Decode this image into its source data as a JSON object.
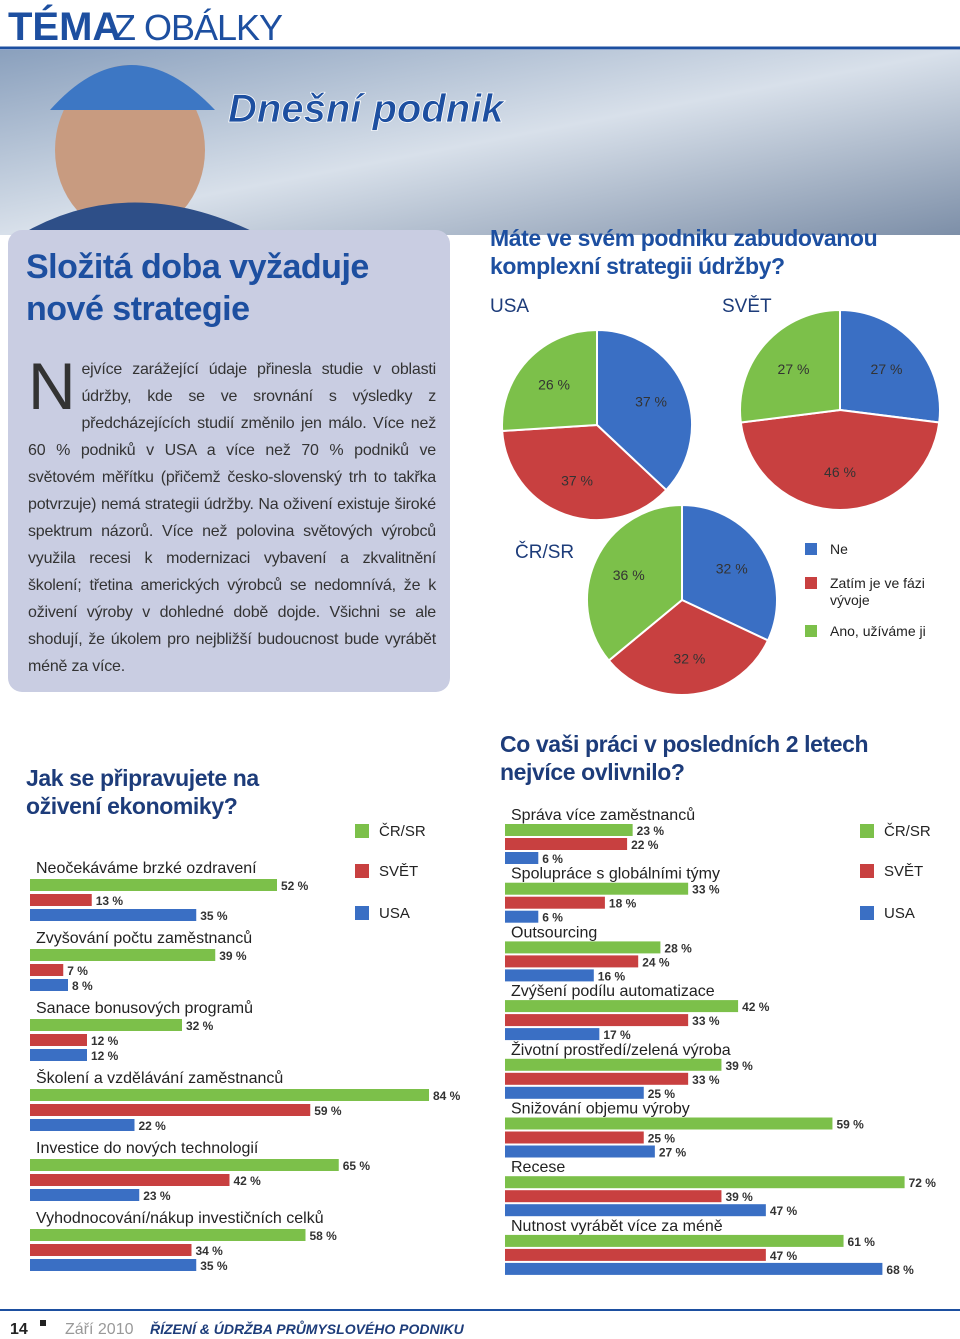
{
  "header": {
    "section": "TÉMA",
    "subsection": "Z OBÁLKY"
  },
  "banner": {
    "title": "Dnešní podnik"
  },
  "article": {
    "title": "Složitá doba vyžaduje nové strategie",
    "body": "Nejvíce zarážející údaje přinesla studie v oblasti údržby, kde se ve srovnání s výsledky z předcházejících studií změnilo jen málo. Více než 60 % podniků v USA a více než 70 % podniků ve světovém měřítku (přičemž česko-slovenský trh to takřka potvrzuje) nemá strategii údržby. Na oživení existuje široké spektrum názorů. Více než polovina světových výrobců využila recesi k modernizaci vybavení a zkvalitnění školení; třetina amerických výrobců se nedomnívá, že k oživení výroby v dohledné době dojde. Všichni se ale shodují, že úkolem pro nejbližší budoucnost bude vyrábět méně za více."
  },
  "chart_data": [
    {
      "type": "pie",
      "title": "Máte ve svém podniku zabudovanou komplexní strategii údržby?",
      "label": "USA",
      "categories": [
        "Ne",
        "Zatím je ve fázi vývoje",
        "Ano, užíváme ji"
      ],
      "colors": [
        "#3a6fc4",
        "#c84040",
        "#7cc04a"
      ],
      "values": [
        37,
        37,
        26
      ],
      "value_labels": [
        "37 %",
        "37 %",
        "26 %"
      ]
    },
    {
      "type": "pie",
      "label": "SVĚT",
      "values": [
        27,
        46,
        27
      ],
      "value_labels": [
        "27 %",
        "46 %",
        "27 %"
      ]
    },
    {
      "type": "pie",
      "label": "ČR/SR",
      "values": [
        32,
        32,
        36
      ],
      "value_labels": [
        "32 %",
        "32 %",
        "36 %"
      ]
    },
    {
      "type": "bar",
      "title": "Jak se připravujete na oživení ekonomiky?",
      "categories": [
        "Neočekáváme brzké ozdravení",
        "Zvyšování počtu zaměstnanců",
        "Sanace bonusových programů",
        "Školení a vzdělávání zaměstnanců",
        "Investice do nových technologií",
        "Vyhodnocování/nákup investičních celků"
      ],
      "series": [
        {
          "name": "ČR/SR",
          "color": "#7cc04a",
          "values": [
            52,
            39,
            32,
            84,
            65,
            58
          ],
          "value_labels": [
            "52 %",
            "39 %",
            "32 %",
            "84 %",
            "65 %",
            "58 %"
          ]
        },
        {
          "name": "SVĚT",
          "color": "#c84040",
          "values": [
            13,
            7,
            12,
            59,
            42,
            34
          ],
          "value_labels": [
            "13 %",
            "7 %",
            "12 %",
            "59 %",
            "42 %",
            "34 %"
          ]
        },
        {
          "name": "USA",
          "color": "#3a6fc4",
          "values": [
            35,
            8,
            12,
            22,
            23,
            35
          ],
          "value_labels": [
            "35 %",
            "8 %",
            "12 %",
            "22 %",
            "23 %",
            "35 %"
          ]
        }
      ]
    },
    {
      "type": "bar",
      "title": "Co vaši práci v posledních 2 letech nejvíce ovlivnilo?",
      "categories": [
        "Správa více zaměstnanců",
        "Spolupráce s globálními týmy",
        "Outsourcing",
        "Zvýšení podílu automatizace",
        "Životní prostředí/zelená výroba",
        "Snižování objemu výroby",
        "Recese",
        "Nutnost vyrábět více za méně"
      ],
      "series": [
        {
          "name": "ČR/SR",
          "color": "#7cc04a",
          "values": [
            23,
            33,
            28,
            42,
            39,
            59,
            72,
            61
          ],
          "value_labels": [
            "23 %",
            "33 %",
            "28 %",
            "42 %",
            "39 %",
            "59 %",
            "72 %",
            "61 %"
          ]
        },
        {
          "name": "SVĚT",
          "color": "#c84040",
          "values": [
            22,
            18,
            24,
            33,
            33,
            25,
            39,
            47
          ],
          "value_labels": [
            "22 %",
            "18 %",
            "24 %",
            "33 %",
            "33 %",
            "25 %",
            "39 %",
            "47 %"
          ]
        },
        {
          "name": "USA",
          "color": "#3a6fc4",
          "values": [
            6,
            6,
            16,
            17,
            25,
            27,
            47,
            68
          ],
          "value_labels": [
            "6 %",
            "6 %",
            "16 %",
            "17 %",
            "25 %",
            "27 %",
            "47 %",
            "68 %"
          ]
        }
      ]
    }
  ],
  "footer": {
    "page": "14",
    "date": "Září 2010",
    "magazine": "ŘÍZENÍ & ÚDRŽBA PRŮMYSLOVÉHO PODNIKU"
  }
}
